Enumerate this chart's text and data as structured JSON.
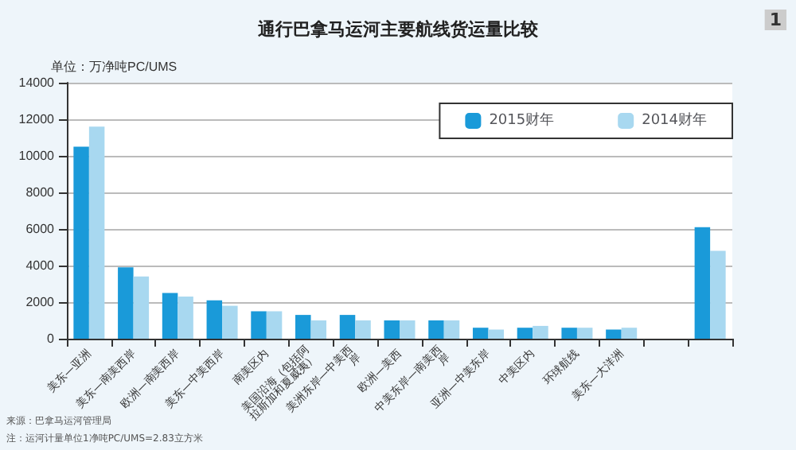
{
  "chart_data": {
    "type": "bar",
    "title": "通行巴拿马运河主要航线货运量比较",
    "ylabel": "单位：万净吨PC/UMS",
    "annotations": [
      "1",
      "来源：巴拿马运河管理局",
      "注：运河计量单位1净吨PC/UMS=2.83立方米"
    ],
    "categories": [
      "美东—亚洲",
      "美东—南美西岸",
      "欧洲—南美西岸",
      "美东—中美西岸",
      "南美区内",
      "美国沿海（包括阿拉斯加和夏威夷）",
      "美洲东岸—中美西岸",
      "欧洲—美西",
      "中美东岸—南美西岸",
      "亚洲—中美东岸",
      "中美区内",
      "环球航线",
      "美东—大洋洲",
      null,
      null
    ],
    "series": [
      {
        "name": "2015财年",
        "color": "#1a9ad9",
        "values": [
          10500,
          3900,
          2500,
          2100,
          1500,
          1300,
          1300,
          1000,
          1000,
          600,
          600,
          600,
          500,
          null,
          6100
        ]
      },
      {
        "name": "2014财年",
        "color": "#a8d8f0",
        "values": [
          11600,
          3400,
          2300,
          1800,
          1500,
          1000,
          1000,
          1000,
          1000,
          500,
          700,
          600,
          600,
          null,
          4800
        ]
      }
    ],
    "ylim": [
      0,
      14000
    ],
    "yticks": [
      0,
      2000,
      4000,
      6000,
      8000,
      10000,
      12000,
      14000
    ],
    "grid": "y",
    "legend": "top right"
  }
}
